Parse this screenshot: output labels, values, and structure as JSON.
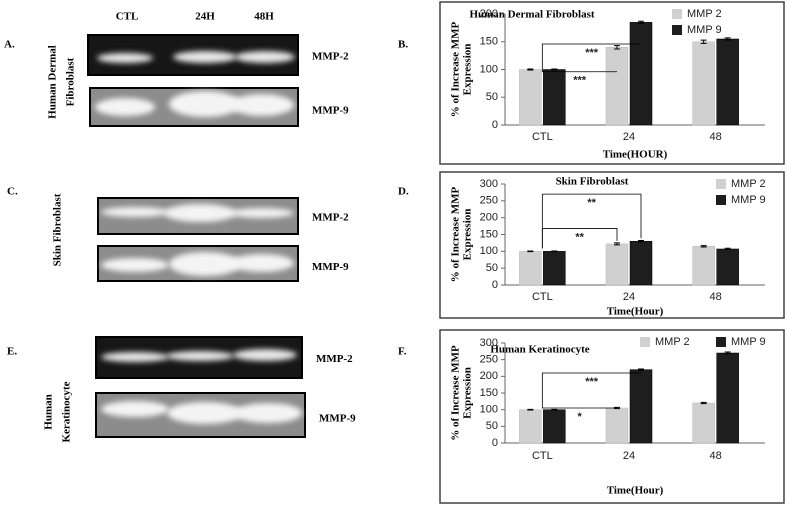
{
  "gels": {
    "lanes": [
      "CTL",
      "24H",
      "48H"
    ],
    "panels": [
      {
        "label": "A.",
        "cell": [
          "Human Dermal",
          "Fibroblast"
        ],
        "blots": [
          "MMP-2",
          "MMP-9"
        ]
      },
      {
        "label": "C.",
        "cell": [
          "Skin Fibroblast"
        ],
        "blots": [
          "MMP-2",
          "MMP-9"
        ]
      },
      {
        "label": "E.",
        "cell": [
          "Human",
          "Keratinocyte"
        ],
        "blots": [
          "MMP-2",
          "MMP-9"
        ]
      }
    ]
  },
  "chart_data": [
    {
      "type": "bar",
      "panel": "B.",
      "title": "Human Dermal Fibroblast",
      "y_label": [
        "% of Increase MMP",
        "Expression"
      ],
      "x_label": "Time(HOUR)",
      "categories": [
        "CTL",
        "24",
        "48"
      ],
      "series": [
        {
          "name": "MMP 2",
          "color": "#d0d0d0",
          "values": [
            100,
            140,
            150
          ],
          "errors": [
            1,
            3,
            3
          ]
        },
        {
          "name": "MMP 9",
          "color": "#1e1e1e",
          "values": [
            100,
            185,
            155
          ],
          "errors": [
            1,
            2,
            2
          ]
        }
      ],
      "annotations": [
        "***",
        "***"
      ],
      "legend": "upper right",
      "ylim": [
        0,
        200
      ],
      "yticks": [
        0,
        50,
        100,
        150,
        200
      ]
    },
    {
      "type": "bar",
      "panel": "D.",
      "title": "Skin Fibroblast",
      "y_label": [
        "% of Increase MMP",
        "Expression"
      ],
      "x_label": "Time(Hour)",
      "categories": [
        "CTL",
        "24",
        "48"
      ],
      "series": [
        {
          "name": "MMP 2",
          "color": "#d0d0d0",
          "values": [
            100,
            122,
            115
          ],
          "errors": [
            1,
            3,
            2
          ]
        },
        {
          "name": "MMP 9",
          "color": "#1e1e1e",
          "values": [
            100,
            130,
            107
          ],
          "errors": [
            1,
            2,
            2
          ]
        }
      ],
      "annotations": [
        "**",
        "**"
      ],
      "legend": "upper right",
      "ylim": [
        0,
        300
      ],
      "yticks": [
        0,
        50,
        100,
        150,
        200,
        250,
        300
      ]
    },
    {
      "type": "bar",
      "panel": "F.",
      "title": "Human Keratinocyte",
      "y_label": [
        "% of Increase MMP",
        "Expression"
      ],
      "x_label": "Time(Hour)",
      "categories": [
        "CTL",
        "24",
        "48"
      ],
      "series": [
        {
          "name": "MMP 2",
          "color": "#d0d0d0",
          "values": [
            100,
            105,
            120
          ],
          "errors": [
            1,
            2,
            2
          ]
        },
        {
          "name": "MMP 9",
          "color": "#1e1e1e",
          "values": [
            100,
            220,
            270
          ],
          "errors": [
            1,
            2,
            3
          ]
        }
      ],
      "annotations": [
        "***",
        "*"
      ],
      "legend": "top",
      "ylim": [
        0,
        300
      ],
      "yticks": [
        0,
        50,
        100,
        150,
        200,
        250,
        300
      ]
    }
  ]
}
